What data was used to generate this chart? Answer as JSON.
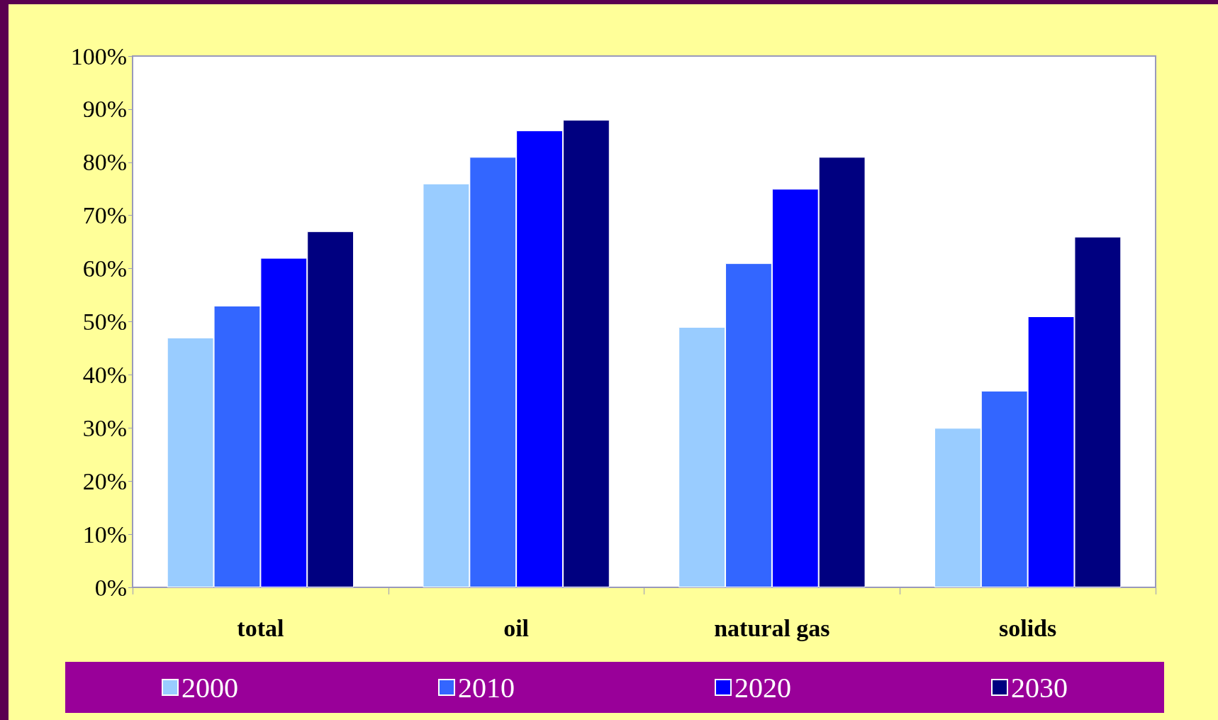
{
  "chart_data": {
    "type": "bar",
    "categories": [
      "total",
      "oil",
      "natural gas",
      "solids"
    ],
    "series": [
      {
        "name": "2000",
        "color": "#99ccff",
        "values": [
          47,
          76,
          49,
          30
        ]
      },
      {
        "name": "2010",
        "color": "#3366ff",
        "values": [
          53,
          81,
          61,
          37
        ]
      },
      {
        "name": "2020",
        "color": "#0000ff",
        "values": [
          62,
          86,
          75,
          51
        ]
      },
      {
        "name": "2030",
        "color": "#000080",
        "values": [
          67,
          88,
          81,
          66
        ]
      }
    ],
    "ylim": [
      0,
      100
    ],
    "yticks": [
      {
        "value": 0,
        "label": "0%"
      },
      {
        "value": 10,
        "label": "10%"
      },
      {
        "value": 20,
        "label": "20%"
      },
      {
        "value": 30,
        "label": "30%"
      },
      {
        "value": 40,
        "label": "40%"
      },
      {
        "value": 50,
        "label": "50%"
      },
      {
        "value": 60,
        "label": "60%"
      },
      {
        "value": 70,
        "label": "70%"
      },
      {
        "value": 80,
        "label": "80%"
      },
      {
        "value": 90,
        "label": "90%"
      },
      {
        "value": 100,
        "label": "100%"
      }
    ],
    "grid": false,
    "legend": "bottom"
  }
}
